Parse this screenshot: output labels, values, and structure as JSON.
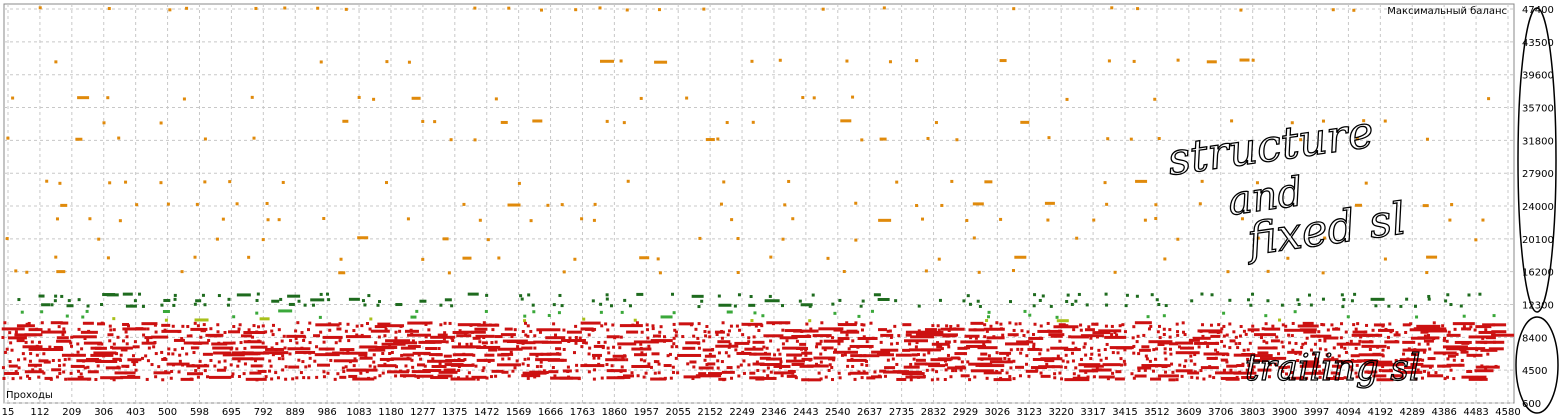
{
  "chart_data": {
    "type": "scatter",
    "title": "Максимальный баланс",
    "xlabel": "Проходы",
    "ylabel": "",
    "x_ticks": [
      "15",
      "112",
      "209",
      "306",
      "403",
      "500",
      "598",
      "695",
      "792",
      "889",
      "986",
      "1083",
      "1180",
      "1277",
      "1375",
      "1472",
      "1569",
      "1666",
      "1763",
      "1860",
      "1957",
      "2055",
      "2152",
      "2249",
      "2346",
      "2443",
      "2540",
      "2637",
      "2735",
      "2832",
      "2929",
      "3026",
      "3123",
      "3220",
      "3317",
      "3415",
      "3512",
      "3609",
      "3706",
      "3803",
      "3900",
      "3997",
      "4094",
      "4192",
      "4289",
      "4386",
      "4483",
      "4580"
    ],
    "y_ticks": [
      47400,
      43500,
      39600,
      35700,
      31800,
      27900,
      24000,
      20100,
      16200,
      12300,
      8400,
      4500,
      600
    ],
    "xlim": [
      15,
      4680
    ],
    "ylim": [
      600,
      48000
    ],
    "grid": true,
    "colors": {
      "high": "#e08a0b",
      "mid_dark": "#1e6b1e",
      "mid_light": "#3aa83a",
      "mid_yellow": "#a8c01a",
      "low": "#cc1111",
      "grid": "#c8c8c8",
      "annotation_ink": "#000000"
    },
    "series": [
      {
        "color_key": "high",
        "x_start": 15,
        "x_step": 97,
        "y_levels": [
          47400,
          41200,
          36800,
          34000,
          32000,
          26800,
          24200,
          22400,
          20100,
          17800,
          16200
        ]
      },
      {
        "color_key": "mid_dark",
        "x_start": 15,
        "x_step": 48,
        "y_levels": [
          13400,
          12800,
          12200
        ]
      },
      {
        "color_key": "mid_light",
        "x_start": 40,
        "x_step": 120,
        "y_levels": [
          11400,
          10900
        ]
      },
      {
        "color_key": "mid_yellow",
        "x_start": 60,
        "x_step": 150,
        "y_levels": [
          10500
        ]
      },
      {
        "color_key": "low",
        "x_start": 15,
        "x_step": 20,
        "y_levels": [
          9900,
          9200,
          8500,
          7800,
          7100,
          6400,
          5700,
          5000,
          4300,
          3600
        ]
      }
    ],
    "annotations": [
      {
        "text_lines": [
          "structure",
          "and",
          "fixed sl"
        ],
        "region": "upper-right"
      },
      {
        "text": "trailing sl",
        "region": "lower-right"
      }
    ]
  }
}
